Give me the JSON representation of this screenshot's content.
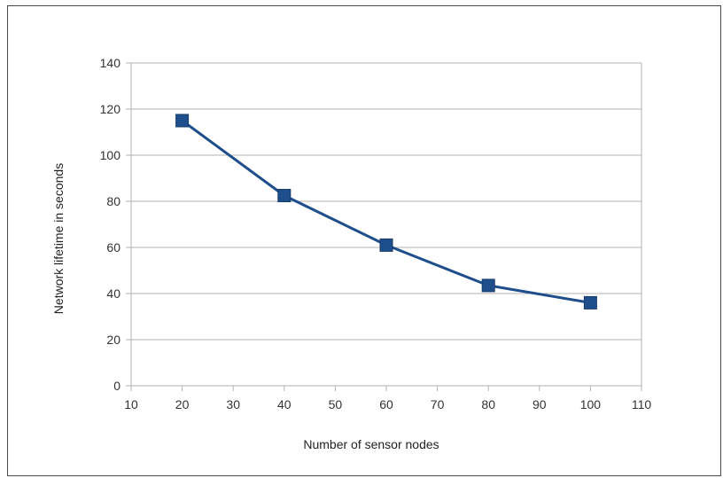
{
  "chart_data": {
    "type": "line",
    "title": "",
    "xlabel": "Number of sensor nodes",
    "ylabel": "Network lifetime in seconds",
    "xlim": [
      10,
      110
    ],
    "ylim": [
      0,
      140
    ],
    "x_ticks": [
      10,
      20,
      30,
      40,
      50,
      60,
      70,
      80,
      90,
      100,
      110
    ],
    "y_ticks": [
      0,
      20,
      40,
      60,
      80,
      100,
      120,
      140
    ],
    "grid": "horizontal",
    "legend": "none",
    "series": [
      {
        "color": "#1f4e8c",
        "marker": "square",
        "x": [
          20,
          40,
          60,
          80,
          100
        ],
        "y": [
          115,
          82.5,
          61,
          43.5,
          36
        ]
      }
    ]
  }
}
